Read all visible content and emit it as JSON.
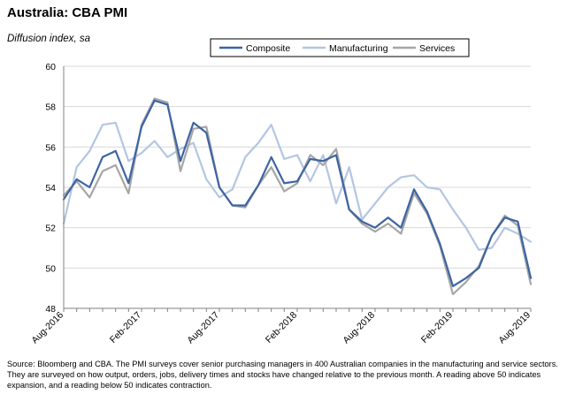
{
  "title": "Australia: CBA  PMI",
  "subtitle": "Diffusion index, sa",
  "source": "Source: Bloomberg and CBA.  The PMI surveys cover senior purchasing managers in 400 Australian companies in the manufacturing and service sectors.  They are surveyed on how output, orders, jobs, delivery times and stocks have changed relative to the previous month.  A reading above 50 indicates expansion, and a reading below 50 indicates contraction.",
  "chart_data": {
    "type": "line",
    "title": "Australia: CBA  PMI",
    "ylabel": "Diffusion index, sa",
    "xlabel": "",
    "ylim": [
      48,
      60
    ],
    "yticks": [
      48,
      50,
      52,
      54,
      56,
      58,
      60
    ],
    "grid": "horizontal",
    "legend_position": "top",
    "x": [
      "Aug-2016",
      "Sep-2016",
      "Oct-2016",
      "Nov-2016",
      "Dec-2016",
      "Jan-2017",
      "Feb-2017",
      "Mar-2017",
      "Apr-2017",
      "May-2017",
      "Jun-2017",
      "Jul-2017",
      "Aug-2017",
      "Sep-2017",
      "Oct-2017",
      "Nov-2017",
      "Dec-2017",
      "Jan-2018",
      "Feb-2018",
      "Mar-2018",
      "Apr-2018",
      "May-2018",
      "Jun-2018",
      "Jul-2018",
      "Aug-2018",
      "Sep-2018",
      "Oct-2018",
      "Nov-2018",
      "Dec-2018",
      "Jan-2019",
      "Feb-2019",
      "Mar-2019",
      "Apr-2019",
      "May-2019",
      "Jun-2019",
      "Jul-2019",
      "Aug-2019"
    ],
    "xtick_labels": [
      "Aug-2016",
      "Feb-2017",
      "Aug-2017",
      "Feb-2018",
      "Aug-2018",
      "Feb-2019",
      "Aug-2019"
    ],
    "xtick_indices": [
      0,
      6,
      12,
      18,
      24,
      30,
      36
    ],
    "series": [
      {
        "name": "Composite",
        "color": "#3d64a3",
        "width": 2.2,
        "values": [
          53.4,
          54.4,
          54.0,
          55.5,
          55.8,
          54.2,
          57.0,
          58.3,
          58.1,
          55.3,
          57.2,
          56.7,
          54.0,
          53.1,
          53.1,
          54.1,
          55.5,
          54.2,
          54.3,
          55.4,
          55.3,
          55.6,
          52.9,
          52.3,
          52.0,
          52.5,
          52.0,
          53.9,
          52.8,
          51.2,
          49.1,
          49.5,
          50.0,
          51.6,
          52.5,
          52.3,
          49.5
        ]
      },
      {
        "name": "Manufacturing",
        "color": "#b3c6e2",
        "width": 2.2,
        "values": [
          52.2,
          55.0,
          55.8,
          57.1,
          57.2,
          55.3,
          55.7,
          56.3,
          55.5,
          55.9,
          56.2,
          54.4,
          53.5,
          53.9,
          55.5,
          56.2,
          57.1,
          55.4,
          55.6,
          54.3,
          55.6,
          53.2,
          55.0,
          52.4,
          53.2,
          54.0,
          54.5,
          54.6,
          54.0,
          53.9,
          52.9,
          52.0,
          50.9,
          51.0,
          52.0,
          51.7,
          51.3
        ]
      },
      {
        "name": "Services",
        "color": "#a6a6a6",
        "width": 2.2,
        "values": [
          53.6,
          54.3,
          53.5,
          54.8,
          55.1,
          53.7,
          57.1,
          58.4,
          58.2,
          54.8,
          56.9,
          57.0,
          54.0,
          53.1,
          53.0,
          54.1,
          55.0,
          53.8,
          54.2,
          55.6,
          55.1,
          55.9,
          52.9,
          52.2,
          51.8,
          52.2,
          51.7,
          53.7,
          52.7,
          51.1,
          48.7,
          49.3,
          50.1,
          51.6,
          52.6,
          52.1,
          49.2
        ]
      }
    ]
  }
}
